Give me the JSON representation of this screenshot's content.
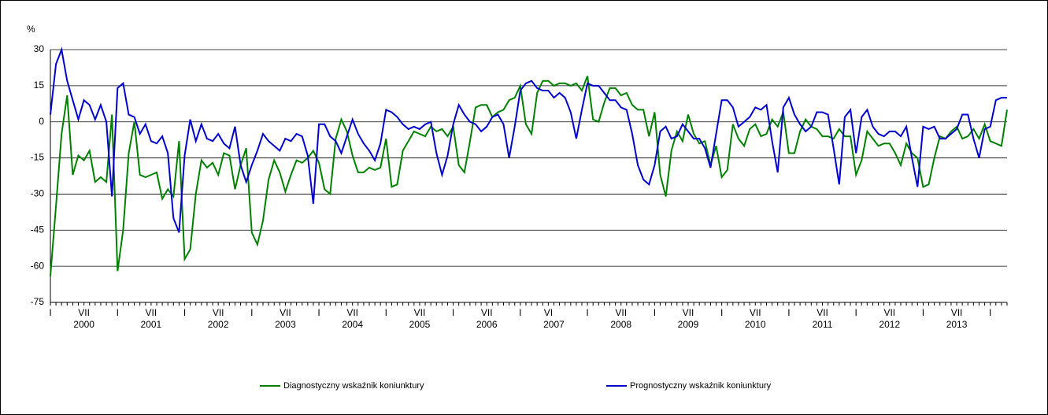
{
  "chart_data": {
    "type": "line",
    "y_label": "%",
    "categories": [
      "I",
      null,
      null,
      null,
      null,
      null,
      "VII",
      null,
      null,
      null,
      null,
      null,
      "I",
      null,
      null,
      null,
      null,
      null,
      "VII",
      null,
      null,
      null,
      null,
      null,
      "I",
      null,
      null,
      null,
      null,
      null,
      "VII",
      null,
      null,
      null,
      null,
      null,
      "I",
      null,
      null,
      null,
      null,
      null,
      "VII",
      null,
      null,
      null,
      null,
      null,
      "I",
      null,
      null,
      null,
      null,
      null,
      "VII",
      null,
      null,
      null,
      null,
      null,
      "I",
      null,
      null,
      null,
      null,
      null,
      "VII",
      null,
      null,
      null,
      null,
      null,
      "I",
      null,
      null,
      null,
      null,
      null,
      "VII",
      null,
      null,
      null,
      null,
      null,
      "I",
      null,
      null,
      null,
      null,
      "VI",
      null,
      null,
      null,
      null,
      null,
      null,
      "I",
      null,
      null,
      null,
      null,
      null,
      "VII",
      null,
      null,
      null,
      null,
      null,
      "I",
      null,
      null,
      null,
      null,
      null,
      "VII",
      null,
      null,
      null,
      null,
      null,
      "I",
      null,
      null,
      null,
      null,
      null,
      "VII",
      null,
      null,
      null,
      null,
      null,
      "I",
      null,
      null,
      null,
      null,
      null,
      "VII",
      null,
      null,
      null,
      null,
      null,
      "I",
      null,
      null,
      null,
      null,
      null,
      "VII",
      null,
      null,
      null,
      null,
      null,
      "I",
      null,
      null,
      null,
      null,
      null,
      "VII",
      null,
      null,
      null,
      null,
      null,
      "I",
      null,
      null,
      null
    ],
    "years": [
      "2000",
      "2001",
      "2002",
      "2003",
      "2004",
      "2005",
      "2006",
      "2007",
      "2008",
      "2009",
      "2010",
      "2011",
      "2012",
      "2013"
    ],
    "series": [
      {
        "name": "Diagnostyczny wskaźnik koniunktury",
        "color": "#008000",
        "values": [
          -64,
          -35,
          -5,
          11,
          -22,
          -14,
          -16,
          -12,
          -25,
          -23,
          -25,
          3,
          -62,
          -45,
          -13,
          0,
          -22,
          -23,
          -22,
          -21,
          -32,
          -28,
          -31,
          -8,
          -57,
          -53,
          -30,
          -16,
          -19,
          -17,
          -22,
          -13,
          -14,
          -28,
          -18,
          -11,
          -46,
          -51,
          -41,
          -24,
          -16,
          -21,
          -29,
          -22,
          -16,
          -17,
          -15,
          -12,
          -17,
          -28,
          -30,
          -7,
          1,
          -4,
          -14,
          -21,
          -21,
          -19,
          -20,
          -19,
          -7,
          -27,
          -26,
          -12,
          -8,
          -4,
          -5,
          -6,
          -2,
          -4,
          -3,
          -6,
          -2,
          -18,
          -21,
          -8,
          6,
          7,
          7,
          2,
          4,
          5,
          9,
          10,
          15,
          -1,
          -5,
          12,
          17,
          17,
          15,
          16,
          16,
          15,
          16,
          13,
          19,
          1,
          0,
          8,
          14,
          14,
          11,
          12,
          7,
          5,
          5,
          -6,
          4,
          -22,
          -31,
          -12,
          -4,
          -8,
          3,
          -5,
          -9,
          -8,
          -18,
          -10,
          -23,
          -20,
          -1,
          -7,
          -10,
          -3,
          -1,
          -6,
          -5,
          1,
          -2,
          4,
          -13,
          -13,
          -4,
          1,
          -2,
          -3,
          -6,
          -6,
          -7,
          -3,
          -6,
          -6,
          -22,
          -16,
          -4,
          -7,
          -10,
          -9,
          -9,
          -13,
          -18,
          -9,
          -13,
          -15,
          -27,
          -26,
          -15,
          -6,
          -7,
          -4,
          -2,
          -7,
          -6,
          -3,
          -7,
          -1,
          -8,
          -9,
          -10,
          5
        ]
      },
      {
        "name": "Prognostyczny wskaźnik koniunktury",
        "color": "#0000cc",
        "values": [
          3,
          24,
          30,
          17,
          9,
          1,
          9,
          7,
          1,
          7,
          0,
          -31,
          14,
          16,
          3,
          2,
          -5,
          -1,
          -8,
          -9,
          -6,
          -13,
          -40,
          -46,
          -14,
          1,
          -8,
          -1,
          -7,
          -8,
          -5,
          -9,
          -11,
          -2,
          -18,
          -25,
          -18,
          -12,
          -5,
          -8,
          -10,
          -12,
          -7,
          -8,
          -5,
          -6,
          -14,
          -34,
          -1,
          -1,
          -6,
          -8,
          -13,
          -6,
          1,
          -5,
          -9,
          -12,
          -16,
          -9,
          5,
          4,
          2,
          -1,
          -3,
          -2,
          -3,
          -1,
          0,
          -13,
          -22,
          -14,
          -1,
          7,
          3,
          0,
          -1,
          -4,
          -2,
          2,
          3,
          -1,
          -15,
          -2,
          13,
          16,
          17,
          14,
          13,
          13,
          10,
          12,
          10,
          4,
          -7,
          5,
          16,
          15,
          15,
          12,
          9,
          9,
          6,
          5,
          -5,
          -18,
          -24,
          -26,
          -18,
          -4,
          -2,
          -7,
          -6,
          -1,
          -4,
          -7,
          -7,
          -11,
          -19,
          -5,
          9,
          9,
          6,
          -2,
          0,
          2,
          6,
          5,
          7,
          -8,
          -21,
          6,
          10,
          3,
          -1,
          -4,
          -2,
          4,
          4,
          3,
          -11,
          -26,
          2,
          5,
          -13,
          2,
          5,
          -2,
          -5,
          -6,
          -4,
          -4,
          -6,
          -2,
          -15,
          -27,
          -2,
          -3,
          -2,
          -7,
          -7,
          -5,
          -3,
          3,
          3,
          -7,
          -15,
          -3,
          -2,
          9,
          10,
          10
        ]
      }
    ],
    "ylim": [
      -75,
      30
    ],
    "yticks": [
      -75,
      -60,
      -45,
      -30,
      -15,
      0,
      15,
      30
    ],
    "grid": true
  }
}
